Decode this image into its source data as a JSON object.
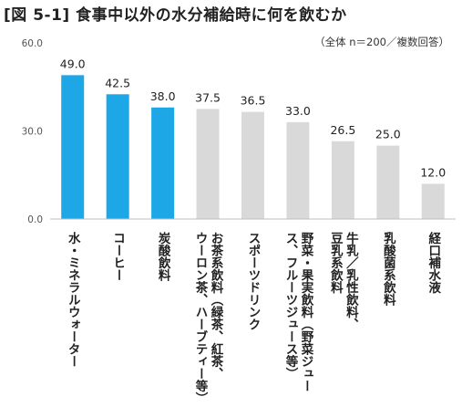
{
  "chart_data": {
    "type": "bar",
    "title": "[図 5-1] 食事中以外の水分補給時に何を飲むか",
    "subtitle": "（全体 n＝200／複数回答）",
    "categories": [
      "水・ミネラルウォーター",
      "コーヒー",
      "炭酸飲料",
      "お茶系飲料（緑茶、紅茶、ウーロン茶、ハーブティー等）",
      "スポーツドリンク",
      "野菜・果実飲料（野菜ジュース、フルーツジュース等）",
      "牛乳／乳性飲料、豆乳系飲料",
      "乳酸菌系飲料",
      "経口補水液"
    ],
    "category_label_lines": [
      [
        "水・ミネラルウォーター"
      ],
      [
        "コーヒー"
      ],
      [
        "炭酸飲料"
      ],
      [
        "お茶系飲料（緑茶、紅茶、",
        "ウーロン茶、ハーブティー等）"
      ],
      [
        "スポーツドリンク"
      ],
      [
        "野菜・果実飲料（野菜ジュー",
        "ス、フルーツジュース等）"
      ],
      [
        "牛乳／乳性飲料、",
        "豆乳系飲料"
      ],
      [
        "乳酸菌系飲料"
      ],
      [
        "経口補水液"
      ]
    ],
    "values": [
      49.0,
      42.5,
      38.0,
      37.5,
      36.5,
      33.0,
      26.5,
      25.0,
      12.0
    ],
    "value_labels": [
      "49.0",
      "42.5",
      "38.0",
      "37.5",
      "36.5",
      "33.0",
      "26.5",
      "25.0",
      "12.0"
    ],
    "highlight_count": 3,
    "ylim": [
      0,
      60
    ],
    "yticks": [
      "0.0",
      "30.0",
      "60.0"
    ],
    "ytick_values": [
      0,
      30,
      60
    ],
    "colors": {
      "highlight": "#1ea7e6",
      "other": "#d9d9d9",
      "axis": "#bfbfbf"
    }
  }
}
